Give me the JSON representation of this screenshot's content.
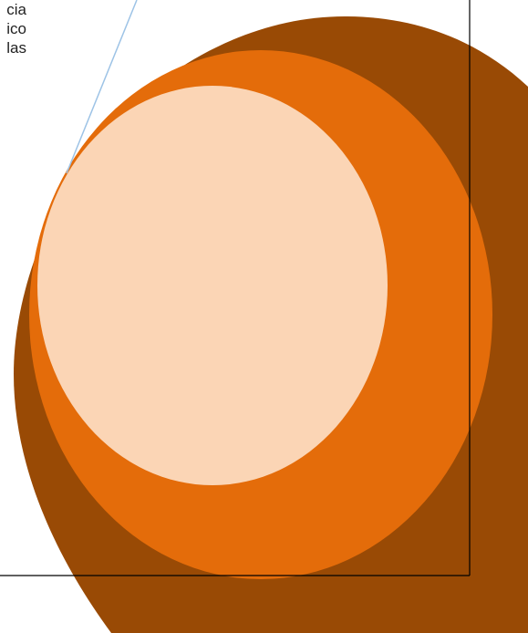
{
  "document": {
    "text_lines": [
      "cia",
      "ico",
      "las"
    ]
  },
  "colors": {
    "outer_circle": "#994a05",
    "middle_circle": "#e46c0a",
    "inner_circle": "#fbd5b5",
    "page_border": "#000000",
    "leader_line": "#9dc3e6"
  }
}
